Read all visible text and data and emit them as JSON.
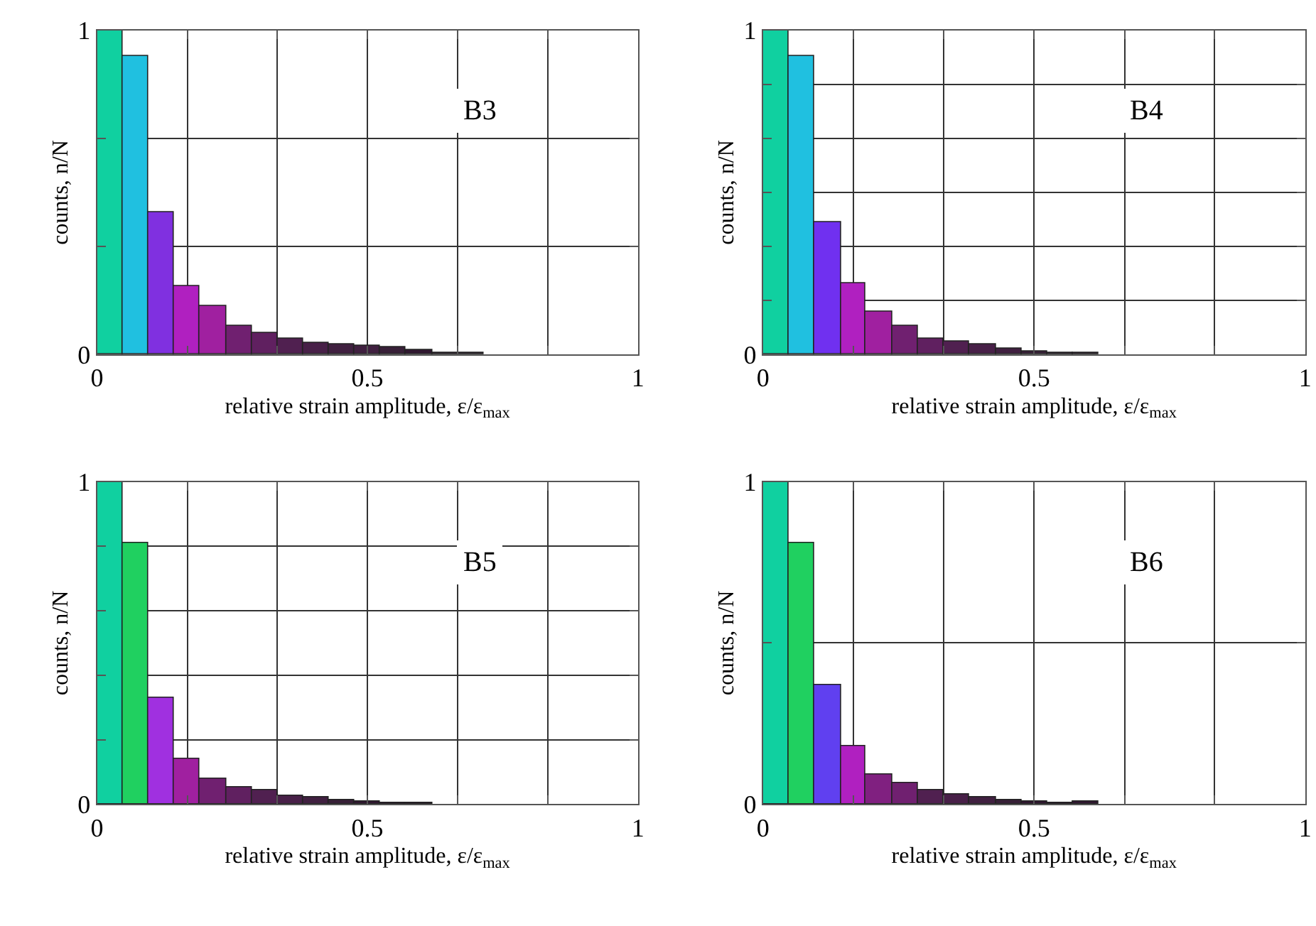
{
  "chart_data": [
    {
      "type": "histogram",
      "xlabel": "relative strain amplitude, ε/ε$_{max}$",
      "ylabel": "counts, n/N",
      "annotations": [
        "B3"
      ],
      "bins": [
        0,
        0.048,
        0.095,
        0.143,
        0.19,
        0.238,
        0.286,
        0.333,
        0.381,
        0.429,
        0.476,
        0.524,
        0.571,
        0.619,
        0.667,
        0.714
      ],
      "values": [
        1.0,
        0.92,
        0.44,
        0.21,
        0.15,
        0.088,
        0.067,
        0.047,
        0.037,
        0.03,
        0.027,
        0.024,
        0.016,
        0.006,
        0.006
      ],
      "colors": [
        "#10d0a0",
        "#20c0e0",
        "#8030e0",
        "#b020c0",
        "#a020a0",
        "#702070",
        "#602060",
        "#502050",
        "#482048",
        "#402040",
        "#402040",
        "#382038",
        "#301830",
        "#301830",
        "#301830"
      ],
      "xlim": [
        0,
        1
      ],
      "ylim": [
        0,
        1
      ],
      "xticks": [
        0,
        {
          "value": 0.167,
          "label": null
        },
        {
          "value": 0.333,
          "label": null
        },
        0.5,
        {
          "value": 0.667,
          "label": null
        },
        {
          "value": 0.833,
          "label": null
        },
        1
      ],
      "yticks": [
        0,
        {
          "value": 0.333,
          "label": null
        },
        {
          "value": 0.667,
          "label": null
        },
        1
      ],
      "grid": true
    },
    {
      "type": "histogram",
      "xlabel": "relative strain amplitude, ε/ε$_{max}$",
      "ylabel": "counts, n/N",
      "annotations": [
        "B4"
      ],
      "bins": [
        0,
        0.048,
        0.095,
        0.143,
        0.19,
        0.238,
        0.286,
        0.333,
        0.381,
        0.429,
        0.476,
        0.524,
        0.571,
        0.619
      ],
      "values": [
        1.0,
        0.92,
        0.41,
        0.22,
        0.13,
        0.089,
        0.051,
        0.04,
        0.03,
        0.02,
        0.011,
        0.003,
        0.007
      ],
      "colors": [
        "#10d0a0",
        "#20c0e0",
        "#7030f0",
        "#b020c0",
        "#a020a0",
        "#702070",
        "#602060",
        "#502050",
        "#482048",
        "#402040",
        "#382038",
        "#301830",
        "#301830"
      ],
      "xlim": [
        0,
        1
      ],
      "ylim": [
        0,
        1
      ],
      "xticks": [
        0,
        {
          "value": 0.167,
          "label": null
        },
        {
          "value": 0.333,
          "label": null
        },
        0.5,
        {
          "value": 0.667,
          "label": null
        },
        {
          "value": 0.833,
          "label": null
        },
        1
      ],
      "yticks": [
        0,
        {
          "value": 0.167,
          "label": null
        },
        {
          "value": 0.333,
          "label": null
        },
        {
          "value": 0.5,
          "label": null
        },
        {
          "value": 0.667,
          "label": null
        },
        {
          "value": 0.833,
          "label": null
        },
        1
      ],
      "grid": true
    },
    {
      "type": "histogram",
      "xlabel": "relative strain amplitude, ε/ε$_{max}$",
      "ylabel": "counts, n/N",
      "annotations": [
        "B5"
      ],
      "bins": [
        0,
        0.048,
        0.095,
        0.143,
        0.19,
        0.238,
        0.286,
        0.333,
        0.381,
        0.429,
        0.476,
        0.524,
        0.571,
        0.619
      ],
      "values": [
        1.0,
        0.81,
        0.33,
        0.14,
        0.08,
        0.054,
        0.043,
        0.026,
        0.021,
        0.014,
        0.009,
        0.004,
        0.003
      ],
      "colors": [
        "#10d0a0",
        "#20d060",
        "#a030e0",
        "#a020a0",
        "#702070",
        "#602060",
        "#502050",
        "#482048",
        "#402040",
        "#382038",
        "#301830",
        "#301830",
        "#301830"
      ],
      "xlim": [
        0,
        1
      ],
      "ylim": [
        0,
        1
      ],
      "xticks": [
        0,
        {
          "value": 0.167,
          "label": null
        },
        {
          "value": 0.333,
          "label": null
        },
        0.5,
        {
          "value": 0.667,
          "label": null
        },
        {
          "value": 0.833,
          "label": null
        },
        1
      ],
      "yticks": [
        0,
        {
          "value": 0.2,
          "label": null
        },
        {
          "value": 0.4,
          "label": null
        },
        {
          "value": 0.6,
          "label": null
        },
        {
          "value": 0.8,
          "label": null
        },
        1
      ],
      "grid": true
    },
    {
      "type": "histogram",
      "xlabel": "relative strain amplitude, ε/ε$_{max}$",
      "ylabel": "counts, n/N",
      "annotations": [
        "B6"
      ],
      "bins": [
        0,
        0.048,
        0.095,
        0.143,
        0.19,
        0.238,
        0.286,
        0.333,
        0.381,
        0.429,
        0.476,
        0.524,
        0.571,
        0.619
      ],
      "values": [
        1.0,
        0.81,
        0.37,
        0.18,
        0.092,
        0.067,
        0.043,
        0.03,
        0.021,
        0.014,
        0.009,
        0.006,
        0.007
      ],
      "colors": [
        "#10d0a0",
        "#20d060",
        "#6040f0",
        "#b020c0",
        "#802080",
        "#702070",
        "#502050",
        "#482048",
        "#402040",
        "#382038",
        "#301830",
        "#301830",
        "#301830"
      ],
      "xlim": [
        0,
        1
      ],
      "ylim": [
        0,
        1
      ],
      "xticks": [
        0,
        {
          "value": 0.167,
          "label": null
        },
        {
          "value": 0.333,
          "label": null
        },
        0.5,
        {
          "value": 0.667,
          "label": null
        },
        {
          "value": 0.833,
          "label": null
        },
        1
      ],
      "yticks": [
        0,
        {
          "value": 0.5,
          "label": null
        },
        1
      ],
      "grid": true
    }
  ]
}
